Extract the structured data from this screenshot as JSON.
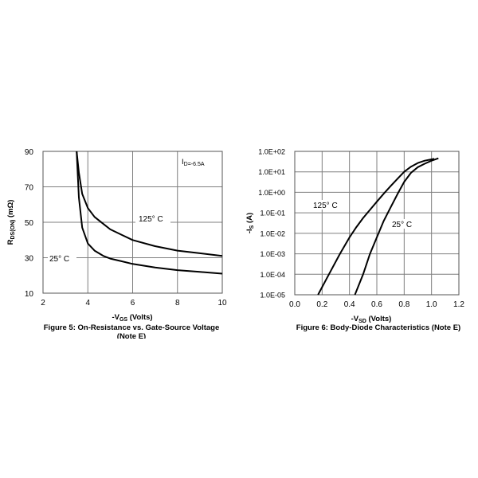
{
  "figures": [
    {
      "caption": "Figure 5: On-Resistance vs. Gate-Source Voltage",
      "caption_line2": "(Note E)"
    },
    {
      "caption": "Figure 6: Body-Diode Characteristics (Note E)"
    }
  ],
  "chart_data": [
    {
      "type": "line",
      "xlabel": "-V_GS (Volts)",
      "ylabel": "R_DS(ON) (mΩ)",
      "xlim": [
        2,
        10
      ],
      "ylim": [
        10,
        90
      ],
      "xticks": [
        "2",
        "4",
        "6",
        "8",
        "10"
      ],
      "yticks": [
        "10",
        "30",
        "50",
        "70",
        "90"
      ],
      "grid": true,
      "annotations": [
        "I_D=-6.5A"
      ],
      "series": [
        {
          "name": "125° C",
          "x": [
            3.5,
            3.6,
            3.75,
            4.0,
            4.3,
            4.7,
            5.0,
            5.5,
            6.0,
            7.0,
            8.0,
            9.0,
            10.0
          ],
          "y": [
            90,
            78,
            66,
            58,
            53,
            49,
            46,
            43,
            40,
            36.5,
            34,
            32.5,
            31
          ]
        },
        {
          "name": "25° C",
          "x": [
            3.5,
            3.6,
            3.75,
            4.0,
            4.3,
            4.7,
            5.0,
            5.5,
            6.0,
            7.0,
            8.0,
            9.0,
            10.0
          ],
          "y": [
            90,
            64,
            47,
            38,
            34,
            31,
            29.5,
            28,
            26.5,
            24.5,
            23,
            22,
            21
          ]
        }
      ]
    },
    {
      "type": "line",
      "xlabel": "-V_SD (Volts)",
      "ylabel": "-I_S (A)",
      "xlim": [
        0.0,
        1.2
      ],
      "ylim": [
        1e-05,
        100.0
      ],
      "yscale": "log",
      "xticks": [
        "0.0",
        "0.2",
        "0.4",
        "0.6",
        "0.8",
        "1.0",
        "1.2"
      ],
      "yticks": [
        "1.0E-05",
        "1.0E-04",
        "1.0E-03",
        "1.0E-02",
        "1.0E-01",
        "1.0E+00",
        "1.0E+01",
        "1.0E+02"
      ],
      "grid": true,
      "series": [
        {
          "name": "125° C",
          "x": [
            0.17,
            0.25,
            0.33,
            0.4,
            0.45,
            0.5,
            0.55,
            0.6,
            0.65,
            0.7,
            0.75,
            0.8,
            0.85,
            0.9,
            0.95,
            1.0,
            1.02
          ],
          "y": [
            1e-05,
            0.0001,
            0.001,
            0.0063,
            0.02,
            0.056,
            0.14,
            0.35,
            0.85,
            2.0,
            4.5,
            10,
            18,
            27,
            35,
            41,
            43
          ]
        },
        {
          "name": "25° C",
          "x": [
            0.44,
            0.5,
            0.55,
            0.6,
            0.65,
            0.7,
            0.75,
            0.8,
            0.85,
            0.9,
            0.95,
            1.0,
            1.05
          ],
          "y": [
            1e-05,
            0.0001,
            0.001,
            0.0063,
            0.04,
            0.18,
            0.8,
            3.2,
            9,
            17,
            25,
            35,
            46
          ]
        }
      ]
    }
  ]
}
